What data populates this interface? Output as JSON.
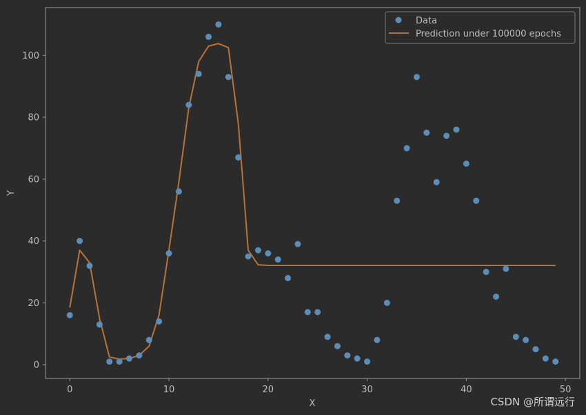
{
  "chart_data": {
    "type": "scatter",
    "xlabel": "X",
    "ylabel": "Y",
    "xlim": [
      -2.45,
      51.45
    ],
    "ylim": [
      -4.45,
      115.45
    ],
    "xticks": [
      0,
      10,
      20,
      30,
      40,
      50
    ],
    "yticks": [
      0,
      20,
      40,
      60,
      80,
      100
    ],
    "grid": false,
    "legend_position": "top-right",
    "series": [
      {
        "name": "Data",
        "kind": "scatter",
        "color": "#5b8db8",
        "x": [
          0,
          1,
          2,
          3,
          4,
          5,
          6,
          7,
          8,
          9,
          10,
          11,
          12,
          13,
          14,
          15,
          16,
          17,
          18,
          19,
          20,
          21,
          22,
          23,
          24,
          25,
          26,
          27,
          28,
          29,
          30,
          31,
          32,
          33,
          34,
          35,
          36,
          37,
          38,
          39,
          40,
          41,
          42,
          43,
          44,
          45,
          46,
          47,
          48,
          49
        ],
        "y": [
          16,
          40,
          32,
          13,
          1,
          1,
          2,
          3,
          8,
          14,
          36,
          56,
          84,
          94,
          106,
          110,
          93,
          67,
          35,
          37,
          36,
          34,
          28,
          39,
          17,
          17,
          9,
          6,
          3,
          2,
          1,
          8,
          20,
          53,
          70,
          93,
          75,
          59,
          74,
          76,
          65,
          53,
          30,
          22,
          31,
          9,
          8,
          5,
          2,
          1
        ]
      },
      {
        "name": "Prediction under 100000 epochs",
        "kind": "line",
        "color": "#b8733a",
        "x": [
          0,
          1,
          2,
          3,
          4,
          5,
          6,
          7,
          8,
          9,
          10,
          11,
          12,
          13,
          14,
          15,
          16,
          17,
          18,
          19,
          20,
          21,
          22,
          23,
          24,
          25,
          26,
          27,
          28,
          29,
          30,
          31,
          32,
          33,
          34,
          35,
          36,
          37,
          38,
          39,
          40,
          41,
          42,
          43,
          44,
          45,
          46,
          47,
          48,
          49
        ],
        "y": [
          18.5,
          37,
          33,
          15,
          2.5,
          1.8,
          2.0,
          3.0,
          6,
          16,
          37,
          59,
          83,
          98,
          103,
          103.8,
          102.5,
          78,
          37,
          32.3,
          32.1,
          32.1,
          32.1,
          32.1,
          32.1,
          32.1,
          32.1,
          32.1,
          32.1,
          32.1,
          32.1,
          32.1,
          32.1,
          32.1,
          32.1,
          32.1,
          32.1,
          32.1,
          32.1,
          32.1,
          32.1,
          32.1,
          32.1,
          32.1,
          32.1,
          32.1,
          32.1,
          32.1,
          32.1,
          32.1
        ]
      }
    ]
  },
  "watermark": "CSDN @所谓远行",
  "colors": {
    "background": "#2b2b2b",
    "axes_edge": "#9a9a9a",
    "text": "#bdbdbd"
  }
}
